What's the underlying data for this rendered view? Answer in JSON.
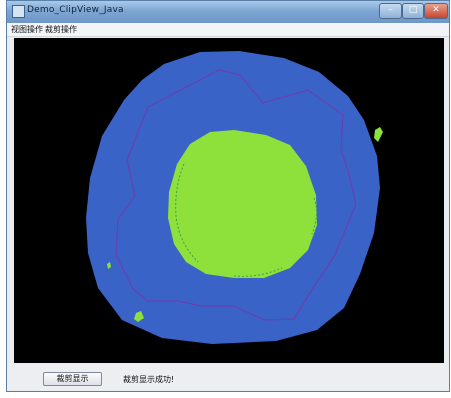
{
  "window": {
    "title": "Demo_ClipView_Java",
    "controls": {
      "minimize": "–",
      "maximize": "□",
      "close": "✕"
    }
  },
  "menu": {
    "items": [
      {
        "label": "视图操作"
      },
      {
        "label": "裁剪操作"
      }
    ]
  },
  "toolbar": {
    "button_label": "裁剪显示",
    "status_text": "裁剪显示成功!"
  },
  "viewport": {
    "background": "#000000",
    "outer_shape_color": "#3a63c8",
    "inner_shape_color": "#8ee03a",
    "outline_color": "#6a3fb0"
  }
}
